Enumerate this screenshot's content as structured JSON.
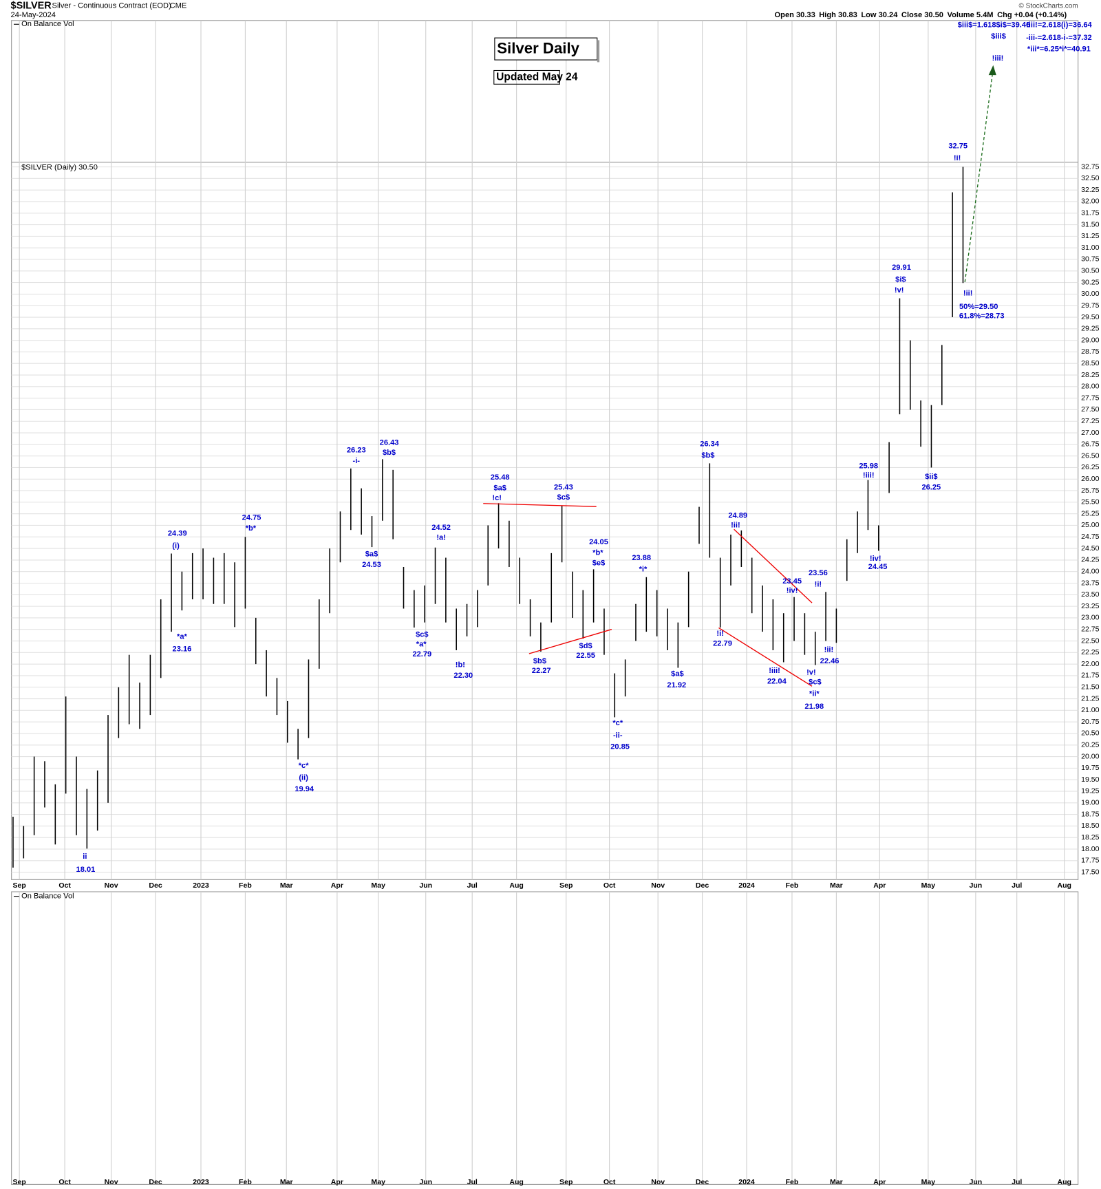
{
  "chart_data": {
    "type": "hilo",
    "symbol": "$SILVER",
    "description": "Silver - Continuous Contract (EOD)",
    "exchange": "CME",
    "date": "24-May-2024",
    "quote": [
      "Open 30.33",
      "High 30.83",
      "Low 30.24",
      "Close 30.50",
      "Volume 5.4M",
      "Chg +0.04 (+0.14%)"
    ],
    "credit": "© StockCharts.com",
    "indicator": "On Balance Vol",
    "title": "Silver Daily",
    "subtitle": "Updated May 24",
    "x": [
      0,
      1,
      2,
      3,
      4,
      5,
      6,
      7,
      8,
      9,
      10,
      11,
      12,
      13,
      14,
      15,
      16,
      17,
      18,
      19,
      20,
      21,
      22,
      23,
      24,
      25,
      26,
      27,
      28,
      29,
      30,
      31,
      32,
      33,
      34,
      35,
      36,
      37,
      38,
      39,
      40,
      41,
      42,
      43,
      44,
      45,
      46,
      47,
      48,
      49,
      50,
      51,
      52,
      53,
      54,
      55,
      56,
      57,
      58,
      59,
      60,
      61,
      62,
      63,
      64,
      65,
      66,
      67,
      68,
      69,
      70,
      71,
      72,
      73,
      74,
      75,
      76,
      77,
      78,
      79,
      80,
      81,
      82,
      83,
      84,
      85,
      86,
      87,
      88,
      89,
      90
    ],
    "series": [
      {
        "name": "$SILVER (Daily) 30.50",
        "color": "#000000",
        "high": [
          18.7,
          18.5,
          20.0,
          19.9,
          19.4,
          21.3,
          20.0,
          19.3,
          19.7,
          20.9,
          21.5,
          22.2,
          21.6,
          22.2,
          23.4,
          24.39,
          24.0,
          24.4,
          24.5,
          24.3,
          24.4,
          24.2,
          24.75,
          23.0,
          22.3,
          21.7,
          21.2,
          20.6,
          22.1,
          23.4,
          24.5,
          25.3,
          26.23,
          25.8,
          25.2,
          26.43,
          26.2,
          24.1,
          23.6,
          23.7,
          24.52,
          24.3,
          23.2,
          23.3,
          23.6,
          25.0,
          25.48,
          25.1,
          24.3,
          23.4,
          22.9,
          24.4,
          25.43,
          24.0,
          23.6,
          24.05,
          23.2,
          21.8,
          22.1,
          23.3,
          23.88,
          23.6,
          23.2,
          22.9,
          24.0,
          25.4,
          26.34,
          24.3,
          24.8,
          24.89,
          24.3,
          23.7,
          23.4,
          23.1,
          23.45,
          23.1,
          22.7,
          23.56,
          23.2,
          24.7,
          25.3,
          25.98,
          25.0,
          26.8,
          29.91,
          29.0,
          27.7,
          27.6,
          28.9,
          32.2,
          32.75
        ],
        "low": [
          17.6,
          17.8,
          18.3,
          18.9,
          18.1,
          19.2,
          18.3,
          18.01,
          18.4,
          19.0,
          20.4,
          20.7,
          20.6,
          20.9,
          21.7,
          22.7,
          23.16,
          23.4,
          23.4,
          23.3,
          23.3,
          22.8,
          23.2,
          22.0,
          21.3,
          20.9,
          20.3,
          19.94,
          20.4,
          21.9,
          23.1,
          24.2,
          24.9,
          24.8,
          24.53,
          25.1,
          24.7,
          23.2,
          22.79,
          22.9,
          23.3,
          22.9,
          22.3,
          22.6,
          22.8,
          23.7,
          24.5,
          24.1,
          23.3,
          22.6,
          22.27,
          22.9,
          24.2,
          23.0,
          22.55,
          22.9,
          22.2,
          20.85,
          21.3,
          22.5,
          22.7,
          22.6,
          22.3,
          21.92,
          22.8,
          24.6,
          24.3,
          22.79,
          23.7,
          24.1,
          23.1,
          22.7,
          22.3,
          22.04,
          22.5,
          22.2,
          21.98,
          22.5,
          22.46,
          23.8,
          24.4,
          24.9,
          24.45,
          25.7,
          27.4,
          27.5,
          26.7,
          26.25,
          27.6,
          29.5,
          30.24
        ]
      }
    ],
    "xlim": [
      -0.15,
      100.9
    ],
    "xticks": [
      {
        "value": 0.6,
        "label": "Sep"
      },
      {
        "value": 4.9,
        "label": "Oct"
      },
      {
        "value": 9.3,
        "label": "Nov"
      },
      {
        "value": 13.5,
        "label": "Dec"
      },
      {
        "value": 17.8,
        "label": "2023"
      },
      {
        "value": 22.0,
        "label": "Feb"
      },
      {
        "value": 25.9,
        "label": "Mar"
      },
      {
        "value": 30.7,
        "label": "Apr"
      },
      {
        "value": 34.6,
        "label": "May"
      },
      {
        "value": 39.1,
        "label": "Jun"
      },
      {
        "value": 43.5,
        "label": "Jul"
      },
      {
        "value": 47.7,
        "label": "Aug"
      },
      {
        "value": 52.4,
        "label": "Sep"
      },
      {
        "value": 56.5,
        "label": "Oct"
      },
      {
        "value": 61.1,
        "label": "Nov"
      },
      {
        "value": 65.3,
        "label": "Dec"
      },
      {
        "value": 69.5,
        "label": "2024"
      },
      {
        "value": 73.8,
        "label": "Feb"
      },
      {
        "value": 78.0,
        "label": "Mar"
      },
      {
        "value": 82.1,
        "label": "Apr"
      },
      {
        "value": 86.7,
        "label": "May"
      },
      {
        "value": 91.2,
        "label": "Jun"
      },
      {
        "value": 95.1,
        "label": "Jul"
      },
      {
        "value": 99.6,
        "label": "Aug"
      }
    ],
    "ylim": [
      17.34,
      32.85
    ],
    "yticks": [
      {
        "value": 17.5,
        "label": "17.50"
      },
      17.75,
      {
        "value": 18,
        "label": "18.00"
      },
      18.25,
      {
        "value": 18.5,
        "label": "18.50"
      },
      18.75,
      {
        "value": 19,
        "label": "19.00"
      },
      19.25,
      {
        "value": 19.5,
        "label": "19.50"
      },
      19.75,
      {
        "value": 20,
        "label": "20.00"
      },
      20.25,
      {
        "value": 20.5,
        "label": "20.50"
      },
      20.75,
      {
        "value": 21,
        "label": "21.00"
      },
      21.25,
      {
        "value": 21.5,
        "label": "21.50"
      },
      21.75,
      {
        "value": 22,
        "label": "22.00"
      },
      22.25,
      {
        "value": 22.5,
        "label": "22.50"
      },
      22.75,
      {
        "value": 23,
        "label": "23.00"
      },
      23.25,
      {
        "value": 23.5,
        "label": "23.50"
      },
      23.75,
      {
        "value": 24,
        "label": "24.00"
      },
      24.25,
      {
        "value": 24.5,
        "label": "24.50"
      },
      24.75,
      {
        "value": 25,
        "label": "25.00"
      },
      25.25,
      {
        "value": 25.5,
        "label": "25.50"
      },
      25.75,
      {
        "value": 26,
        "label": "26.00"
      },
      26.25,
      {
        "value": 26.5,
        "label": "26.50"
      },
      26.75,
      {
        "value": 27,
        "label": "27.00"
      },
      27.25,
      {
        "value": 27.5,
        "label": "27.50"
      },
      27.75,
      {
        "value": 28,
        "label": "28.00"
      },
      28.25,
      {
        "value": 28.5,
        "label": "28.50"
      },
      28.75,
      {
        "value": 29,
        "label": "29.00"
      },
      29.25,
      {
        "value": 29.5,
        "label": "29.50"
      },
      29.75,
      {
        "value": 30,
        "label": "30.00"
      },
      30.25,
      {
        "value": 30.5,
        "label": "30.50"
      },
      30.75,
      {
        "value": 31,
        "label": "31.00"
      },
      31.25,
      {
        "value": 31.5,
        "label": "31.50"
      },
      31.75,
      {
        "value": 32,
        "label": "32.00"
      },
      32.25,
      {
        "value": 32.5,
        "label": "32.50"
      },
      32.75
    ],
    "grid": true,
    "annotations": [
      "32.75",
      "!i!",
      "29.91",
      "$i$",
      "!v!",
      "!ii!",
      "50%=29.50",
      "61.8%=28.73",
      "25.98",
      "!iii!",
      "$ii$",
      "26.25",
      "!iv!",
      "24.45",
      "26.34",
      "$b$",
      "24.89",
      "!ii!",
      "23.45",
      "!iv!",
      "23.56",
      "!i!",
      "!ii!",
      "22.46",
      "!i!",
      "22.79",
      "!iii!",
      "22.04",
      "!v!",
      "$c$",
      "*ii*",
      "21.98",
      "23.88",
      "*i*",
      "$a$",
      "21.92",
      "24.05",
      "*b*",
      "$e$",
      "*c*",
      "-ii-",
      "20.85",
      "25.43",
      "$c$",
      "$d$",
      "22.55",
      "$b$",
      "22.27",
      "25.48",
      "$a$",
      "!c!",
      "24.52",
      "!a!",
      "!b!",
      "22.30",
      "$c$",
      "*a*",
      "22.79",
      "26.23",
      "-i-",
      "26.43",
      "$b$",
      "$a$",
      "24.53",
      "24.75",
      "*b*",
      "24.39",
      "(i)",
      "*a*",
      "23.16",
      "*c*",
      "(ii)",
      "19.94",
      "ii",
      "18.01",
      "$iii$=1.618$i$=39.46",
      "!iii!=2.618(i)=36.64",
      "$iii$",
      "-iii-=2.618-i-=37.32",
      "*iii*=6.25*i*=40.91",
      "!iii!"
    ]
  }
}
